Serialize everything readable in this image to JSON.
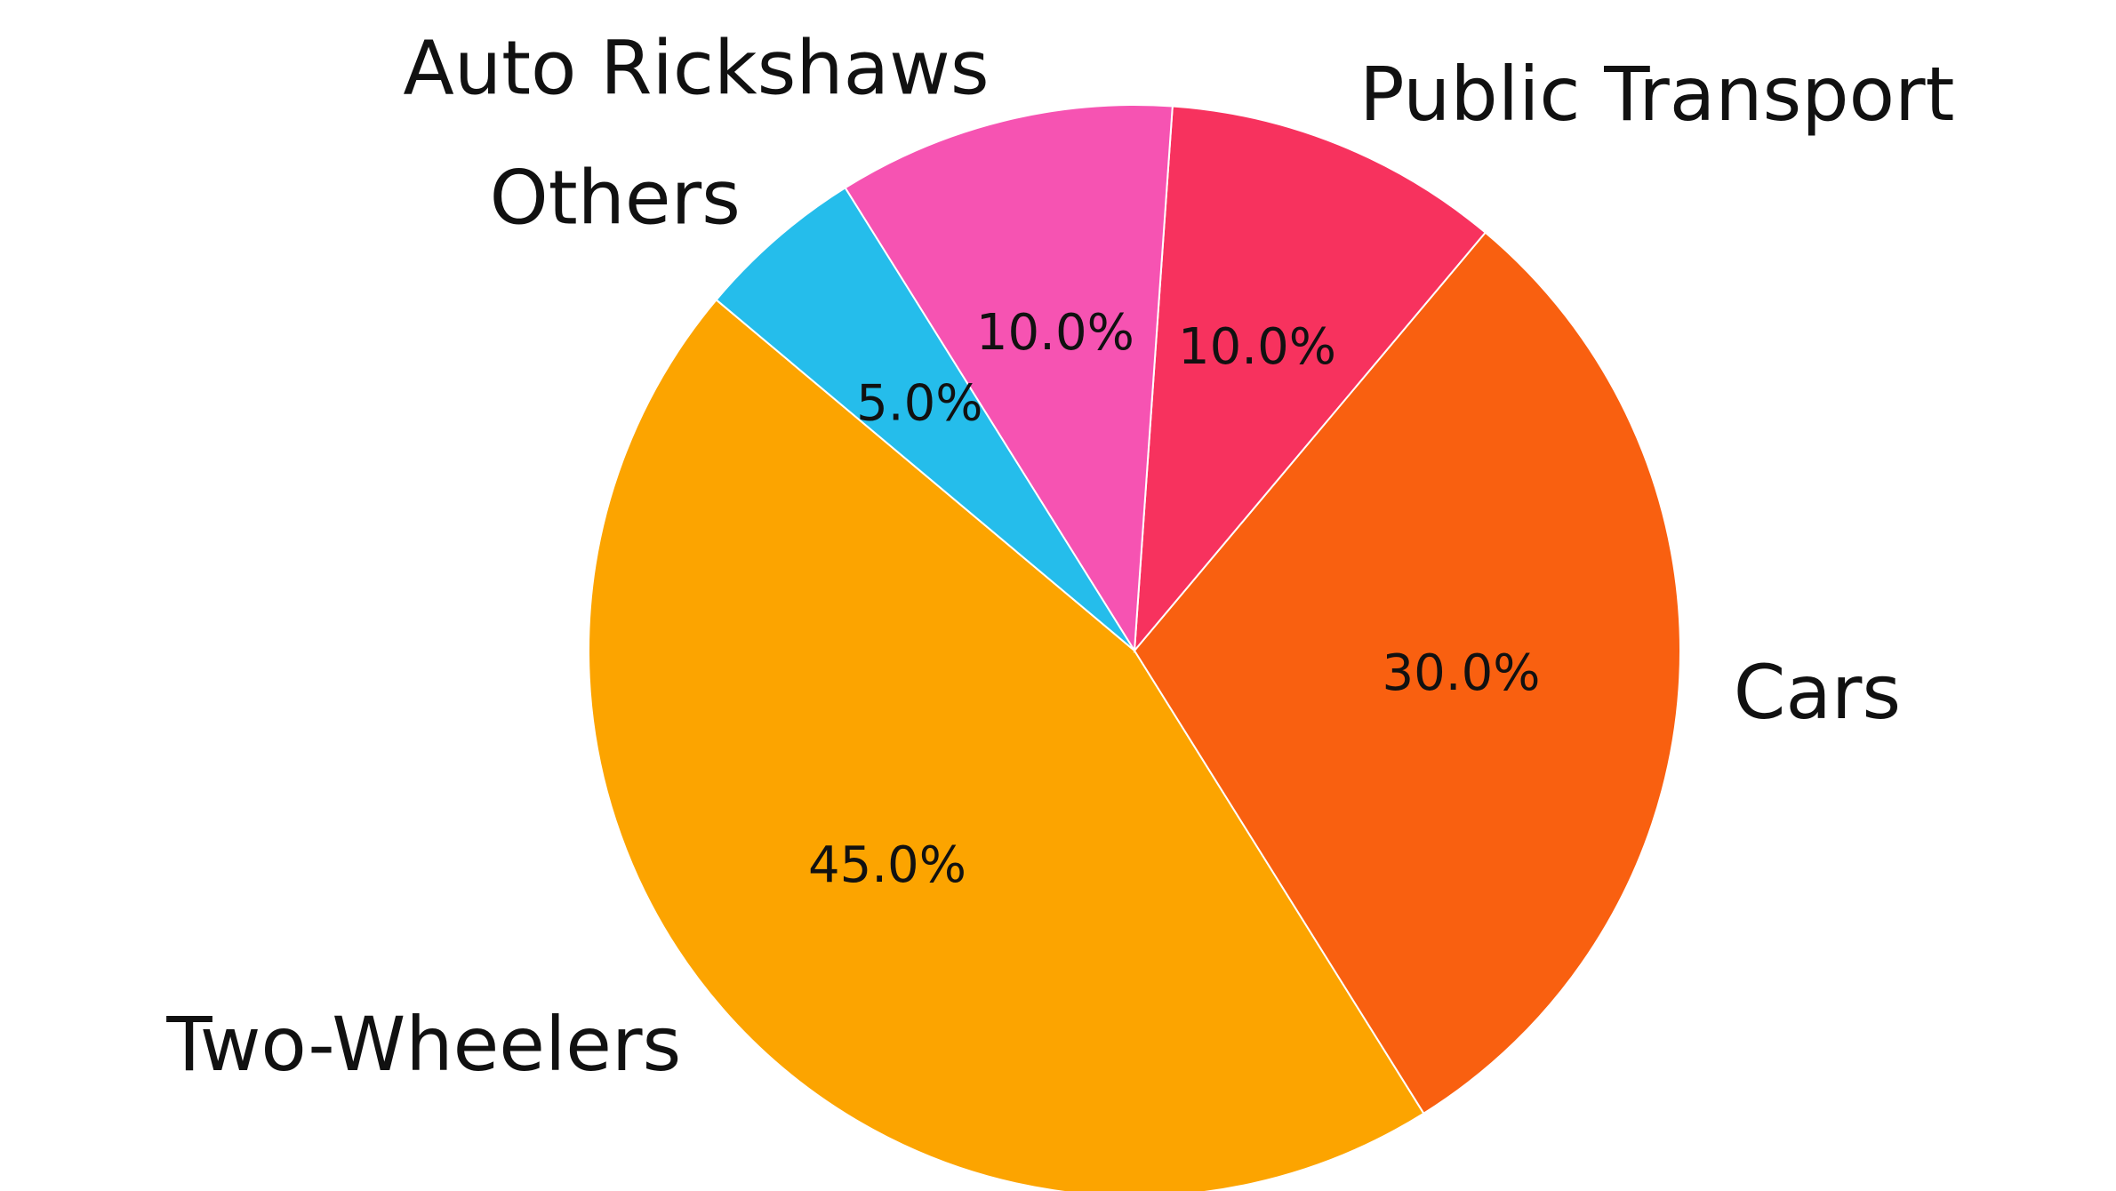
{
  "chart_data": {
    "type": "pie",
    "categories": [
      "Two-Wheelers",
      "Cars",
      "Public Transport",
      "Auto Rickshaws",
      "Others"
    ],
    "values": [
      45.0,
      30.0,
      10.0,
      10.0,
      5.0
    ],
    "percent_labels": [
      "45.0%",
      "30.0%",
      "10.0%",
      "10.0%",
      "5.0%"
    ],
    "colors": [
      "#FCA400",
      "#F96010",
      "#F7325E",
      "#F653B2",
      "#25BDEB"
    ],
    "start_angle_deg": 140,
    "direction": "counterclockwise",
    "legend": "none"
  }
}
